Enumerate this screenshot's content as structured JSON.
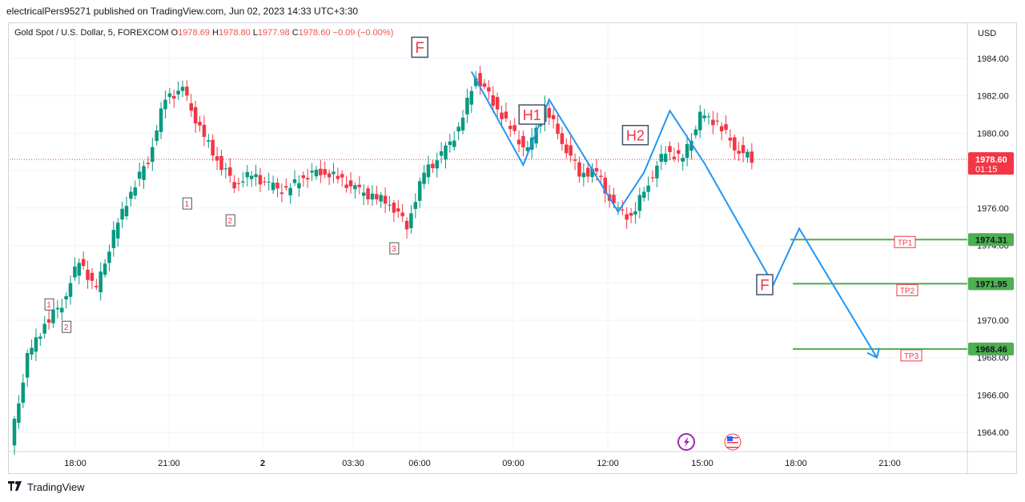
{
  "header": {
    "published": "electricalPers95271 published on TradingView.com, Jun 02, 2023 14:33 UTC+3:30"
  },
  "symbol_bar": {
    "name": "Gold Spot / U.S. Dollar, 5, FOREXCOM",
    "o_label": "O",
    "o": "1978.69",
    "h_label": "H",
    "h": "1978.80",
    "l_label": "L",
    "l": "1977.98",
    "c_label": "C",
    "c": "1978.60",
    "change": "−0.09 (−0.00%)"
  },
  "footer": {
    "brand": "TradingView",
    "logo_icon": "tradingview-logo-icon"
  },
  "colors": {
    "up": "#089981",
    "down": "#f23645",
    "projection": "#2196f3",
    "tp_line": "#4caf50",
    "price_tag": "#f23645",
    "tp_tag": "#4caf50"
  },
  "chart_data": {
    "type": "candlestick",
    "currency": "USD",
    "y_ticks": [
      "1984.00",
      "1982.00",
      "1980.00",
      "1978.00",
      "1976.00",
      "1974.00",
      "1972.00",
      "1970.00",
      "1968.00",
      "1966.00",
      "1964.00"
    ],
    "ylim": [
      1963.0,
      1985.0
    ],
    "x_ticks": [
      "18:00",
      "21:00",
      "2",
      "03:30",
      "06:00",
      "09:00",
      "12:00",
      "15:00",
      "18:00",
      "21:00"
    ],
    "last_price": "1978.60",
    "countdown": "01:15",
    "candles_close_path": [
      {
        "t": 0,
        "o": 1963.3,
        "h": 1968.6,
        "l": 1963.0,
        "c": 1968.0
      },
      {
        "t": 2,
        "o": 1968.0,
        "h": 1970.5,
        "l": 1966.8,
        "c": 1969.8
      },
      {
        "t": 4,
        "o": 1969.8,
        "h": 1971.5,
        "l": 1968.2,
        "c": 1970.9
      },
      {
        "t": 6,
        "o": 1970.9,
        "h": 1973.8,
        "l": 1970.3,
        "c": 1973.2
      },
      {
        "t": 8,
        "o": 1973.2,
        "h": 1974.2,
        "l": 1970.6,
        "c": 1971.6
      },
      {
        "t": 10,
        "o": 1971.6,
        "h": 1975.0,
        "l": 1971.0,
        "c": 1974.6
      },
      {
        "t": 12,
        "o": 1974.6,
        "h": 1977.3,
        "l": 1974.0,
        "c": 1976.9
      },
      {
        "t": 14,
        "o": 1976.9,
        "h": 1979.2,
        "l": 1976.3,
        "c": 1978.6
      },
      {
        "t": 16,
        "o": 1978.6,
        "h": 1982.4,
        "l": 1978.0,
        "c": 1981.9
      },
      {
        "t": 18,
        "o": 1981.9,
        "h": 1983.1,
        "l": 1981.1,
        "c": 1982.3
      },
      {
        "t": 20,
        "o": 1982.3,
        "h": 1982.6,
        "l": 1979.5,
        "c": 1980.2
      },
      {
        "t": 22,
        "o": 1980.2,
        "h": 1980.9,
        "l": 1978.2,
        "c": 1978.6
      },
      {
        "t": 24,
        "o": 1978.6,
        "h": 1978.9,
        "l": 1976.8,
        "c": 1977.3
      },
      {
        "t": 26,
        "o": 1977.3,
        "h": 1978.4,
        "l": 1976.6,
        "c": 1977.8
      },
      {
        "t": 28,
        "o": 1977.8,
        "h": 1978.6,
        "l": 1976.9,
        "c": 1977.2
      },
      {
        "t": 30,
        "o": 1977.2,
        "h": 1977.8,
        "l": 1976.3,
        "c": 1976.9
      },
      {
        "t": 32,
        "o": 1976.9,
        "h": 1978.0,
        "l": 1976.5,
        "c": 1977.7
      },
      {
        "t": 34,
        "o": 1977.7,
        "h": 1978.4,
        "l": 1977.2,
        "c": 1978.0
      },
      {
        "t": 36,
        "o": 1978.0,
        "h": 1978.2,
        "l": 1977.2,
        "c": 1977.6
      },
      {
        "t": 38,
        "o": 1977.6,
        "h": 1977.9,
        "l": 1976.8,
        "c": 1977.0
      },
      {
        "t": 40,
        "o": 1977.0,
        "h": 1977.6,
        "l": 1976.2,
        "c": 1976.6
      },
      {
        "t": 42,
        "o": 1976.6,
        "h": 1977.4,
        "l": 1975.9,
        "c": 1976.3
      },
      {
        "t": 44,
        "o": 1976.3,
        "h": 1976.9,
        "l": 1974.6,
        "c": 1975.1
      },
      {
        "t": 46,
        "o": 1975.1,
        "h": 1978.2,
        "l": 1974.8,
        "c": 1977.9
      },
      {
        "t": 48,
        "o": 1977.9,
        "h": 1979.6,
        "l": 1977.2,
        "c": 1978.8
      },
      {
        "t": 50,
        "o": 1978.8,
        "h": 1980.6,
        "l": 1978.3,
        "c": 1980.2
      },
      {
        "t": 52,
        "o": 1980.2,
        "h": 1983.4,
        "l": 1979.9,
        "c": 1983.1
      },
      {
        "t": 54,
        "o": 1983.1,
        "h": 1983.3,
        "l": 1981.4,
        "c": 1981.7
      },
      {
        "t": 56,
        "o": 1981.7,
        "h": 1982.1,
        "l": 1979.8,
        "c": 1980.2
      },
      {
        "t": 58,
        "o": 1980.2,
        "h": 1980.8,
        "l": 1978.6,
        "c": 1979.0
      },
      {
        "t": 60,
        "o": 1979.0,
        "h": 1982.0,
        "l": 1978.8,
        "c": 1981.4
      },
      {
        "t": 62,
        "o": 1981.4,
        "h": 1981.8,
        "l": 1979.2,
        "c": 1979.6
      },
      {
        "t": 64,
        "o": 1979.6,
        "h": 1979.9,
        "l": 1977.4,
        "c": 1977.9
      },
      {
        "t": 66,
        "o": 1977.9,
        "h": 1978.6,
        "l": 1977.4,
        "c": 1977.9
      },
      {
        "t": 68,
        "o": 1977.9,
        "h": 1978.5,
        "l": 1975.6,
        "c": 1976.0
      },
      {
        "t": 70,
        "o": 1976.0,
        "h": 1976.9,
        "l": 1975.1,
        "c": 1975.5
      },
      {
        "t": 72,
        "o": 1975.5,
        "h": 1977.6,
        "l": 1975.2,
        "c": 1977.4
      },
      {
        "t": 74,
        "o": 1977.4,
        "h": 1979.4,
        "l": 1977.0,
        "c": 1979.1
      },
      {
        "t": 76,
        "o": 1979.1,
        "h": 1979.6,
        "l": 1978.2,
        "c": 1978.6
      },
      {
        "t": 78,
        "o": 1978.6,
        "h": 1981.2,
        "l": 1978.4,
        "c": 1980.9
      },
      {
        "t": 80,
        "o": 1980.9,
        "h": 1981.0,
        "l": 1980.2,
        "c": 1980.6
      },
      {
        "t": 82,
        "o": 1980.6,
        "h": 1980.8,
        "l": 1978.9,
        "c": 1979.3
      },
      {
        "t": 84,
        "o": 1979.3,
        "h": 1979.6,
        "l": 1978.0,
        "c": 1978.6
      }
    ],
    "wave_labels": [
      {
        "text": "1",
        "t": 4,
        "y": 1970.8
      },
      {
        "text": "2",
        "t": 6,
        "y": 1969.6
      },
      {
        "text": "1",
        "t": 20,
        "y": 1976.2
      },
      {
        "text": "2",
        "t": 25,
        "y": 1975.3
      },
      {
        "text": "3",
        "t": 44,
        "y": 1973.8
      }
    ],
    "pattern_labels": [
      {
        "text": "F",
        "t": 47,
        "y": 1984.6,
        "size": "large"
      },
      {
        "text": "H1",
        "t": 60,
        "y": 1981.0,
        "size": "medium"
      },
      {
        "text": "H2",
        "t": 72,
        "y": 1979.9,
        "size": "medium"
      },
      {
        "text": "F",
        "t": 87,
        "y": 1971.9,
        "size": "large"
      }
    ],
    "projection_path": [
      {
        "t": 53,
        "y": 1983.3
      },
      {
        "t": 59,
        "y": 1978.3
      },
      {
        "t": 62,
        "y": 1981.8
      },
      {
        "t": 70,
        "y": 1975.8
      },
      {
        "t": 73,
        "y": 1977.9
      },
      {
        "t": 76,
        "y": 1981.2
      },
      {
        "t": 80,
        "y": 1978.4
      },
      {
        "t": 88,
        "y": 1971.9
      },
      {
        "t": 91,
        "y": 1974.9
      },
      {
        "t": 100,
        "y": 1968.0
      }
    ],
    "take_profits": [
      {
        "label": "TP1",
        "price": "1974.31",
        "value": 1974.31
      },
      {
        "label": "TP2",
        "price": "1971.95",
        "value": 1971.95
      },
      {
        "label": "TP3",
        "price": "1968.46",
        "value": 1968.46
      }
    ],
    "event_icons": [
      {
        "name": "lightning-event-icon",
        "t": 82
      },
      {
        "name": "us-flag-event-icon",
        "t": 86
      }
    ]
  }
}
